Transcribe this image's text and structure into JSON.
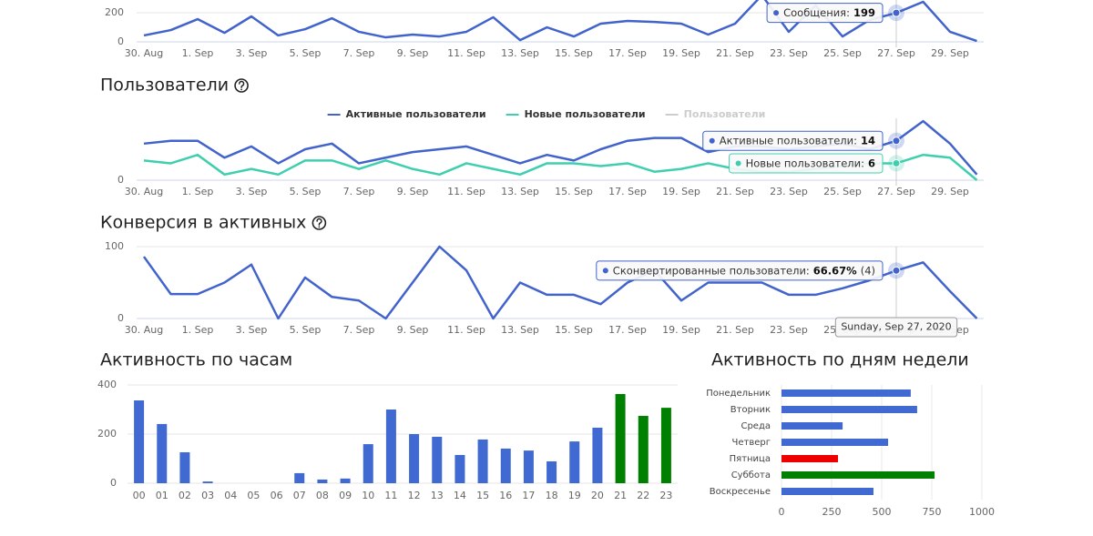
{
  "chart_data": [
    {
      "type": "line",
      "categories": [
        "30. Aug",
        null,
        "1. Sep",
        null,
        "3. Sep",
        null,
        "5. Sep",
        null,
        "7. Sep",
        null,
        "9. Sep",
        null,
        "11. Sep",
        null,
        "13. Sep",
        null,
        "15. Sep",
        null,
        "17. Sep",
        null,
        "19. Sep",
        null,
        "21. Sep",
        null,
        "23. Sep",
        null,
        "25. Sep",
        null,
        "27. Sep",
        null,
        "29. Sep",
        null
      ],
      "series": [
        {
          "name": "Сообщения",
          "color": "#4163cb",
          "values": [
            44,
            81,
            156,
            62,
            175,
            44,
            87,
            162,
            69,
            31,
            50,
            37,
            69,
            169,
            12,
            100,
            37,
            125,
            144,
            137,
            125,
            50,
            125,
            320,
            69,
            250,
            37,
            150,
            199,
            275,
            69,
            6
          ]
        }
      ],
      "ylim": [
        0,
        400
      ],
      "yticks": [
        0,
        200
      ],
      "grid": true,
      "tooltip": {
        "index": 28,
        "items": [
          {
            "series": 0,
            "label": "Сообщения:"
          }
        ]
      }
    },
    {
      "type": "line",
      "title": "Пользователи",
      "categories": [
        "30. Aug",
        null,
        "1. Sep",
        null,
        "3. Sep",
        null,
        "5. Sep",
        null,
        "7. Sep",
        null,
        "9. Sep",
        null,
        "11. Sep",
        null,
        "13. Sep",
        null,
        "15. Sep",
        null,
        "17. Sep",
        null,
        "19. Sep",
        null,
        "21. Sep",
        null,
        "23. Sep",
        null,
        "25. Sep",
        null,
        "27. Sep",
        null,
        "29. Sep",
        null
      ],
      "series": [
        {
          "name": "Активные пользователи",
          "color": "#4163cb",
          "values": [
            13,
            14,
            14,
            8,
            12,
            6,
            11,
            13,
            6,
            8,
            10,
            11,
            12,
            9,
            6,
            9,
            7,
            11,
            14,
            15,
            15,
            10,
            12,
            12,
            11,
            12,
            13,
            11,
            14,
            21,
            13,
            2
          ]
        },
        {
          "name": "Новые пользователи",
          "color": "#3fcfae",
          "values": [
            7,
            6,
            9,
            2,
            4,
            2,
            7,
            7,
            4,
            7,
            4,
            2,
            6,
            4,
            2,
            6,
            6,
            5,
            6,
            3,
            4,
            6,
            4,
            3,
            3,
            4,
            5,
            6,
            6,
            9,
            8,
            0
          ]
        },
        {
          "name": "Пользователи",
          "color": "#cccccc",
          "visible": false
        }
      ],
      "ylim": [
        0,
        22
      ],
      "yticks": [
        0
      ],
      "grid": true,
      "legend": "top",
      "tooltip": {
        "index": 28,
        "items": [
          {
            "series": 0,
            "label": "Активные пользователи:"
          },
          {
            "series": 1,
            "label": "Новые пользователи:"
          }
        ]
      }
    },
    {
      "type": "line",
      "title": "Конверсия в активных",
      "categories": [
        "30. Aug",
        null,
        "1. Sep",
        null,
        "3. Sep",
        null,
        "5. Sep",
        null,
        "7. Sep",
        null,
        "9. Sep",
        null,
        "11. Sep",
        null,
        "13. Sep",
        null,
        "15. Sep",
        null,
        "17. Sep",
        null,
        "19. Sep",
        null,
        "21. Sep",
        null,
        "23. Sep",
        null,
        "25. Sep",
        null,
        "27. Sep",
        null,
        "29. Sep",
        null
      ],
      "series": [
        {
          "name": "Сконвертированные пользователи",
          "color": "#4163cb",
          "values": [
            86,
            34,
            34,
            50,
            75,
            0,
            57,
            30,
            25,
            0,
            50,
            100,
            67,
            0,
            50,
            33,
            33,
            20,
            50,
            67,
            25,
            50,
            50,
            50,
            33,
            33,
            42,
            53,
            66.67,
            78,
            38,
            0
          ]
        }
      ],
      "ylim": [
        0,
        100
      ],
      "yticks": [
        0,
        100
      ],
      "grid": true,
      "tooltip": {
        "index": 28,
        "date": "Sunday, Sep 27, 2020",
        "items": [
          {
            "series": 0,
            "label": "Сконвертированные пользователи:",
            "value_label": "66.67%",
            "extra": "(4)"
          }
        ]
      }
    },
    {
      "type": "bar",
      "title": "Активность по часам",
      "categories": [
        "00",
        "01",
        "02",
        "03",
        "04",
        "05",
        "06",
        "07",
        "08",
        "09",
        "10",
        "11",
        "12",
        "13",
        "14",
        "15",
        "16",
        "17",
        "18",
        "19",
        "20",
        "21",
        "22",
        "23"
      ],
      "values": [
        337,
        241,
        126,
        7,
        0,
        0,
        0,
        41,
        15,
        19,
        159,
        300,
        200,
        189,
        115,
        178,
        141,
        133,
        89,
        170,
        226,
        363,
        274,
        307
      ],
      "colors": [
        "#4169d2",
        "#4169d2",
        "#4169d2",
        "#4169d2",
        "#4169d2",
        "#4169d2",
        "#4169d2",
        "#4169d2",
        "#4169d2",
        "#4169d2",
        "#4169d2",
        "#4169d2",
        "#4169d2",
        "#4169d2",
        "#4169d2",
        "#4169d2",
        "#4169d2",
        "#4169d2",
        "#4169d2",
        "#4169d2",
        "#4169d2",
        "#008000",
        "#008000",
        "#008000"
      ],
      "ylim": [
        0,
        400
      ],
      "yticks": [
        0,
        200,
        400
      ],
      "grid": true
    },
    {
      "type": "hbar",
      "title": "Активность по дням недели",
      "categories": [
        "Понедельник",
        "Вторник",
        "Среда",
        "Четверг",
        "Пятница",
        "Суббота",
        "Воскресенье"
      ],
      "values": [
        645,
        677,
        305,
        532,
        282,
        764,
        459
      ],
      "colors": [
        "#4169d2",
        "#4169d2",
        "#4169d2",
        "#4169d2",
        "#ee0000",
        "#008000",
        "#4169d2"
      ],
      "xlim": [
        0,
        1000
      ],
      "xticks": [
        0,
        250,
        500,
        750,
        1000
      ],
      "grid": true
    }
  ]
}
